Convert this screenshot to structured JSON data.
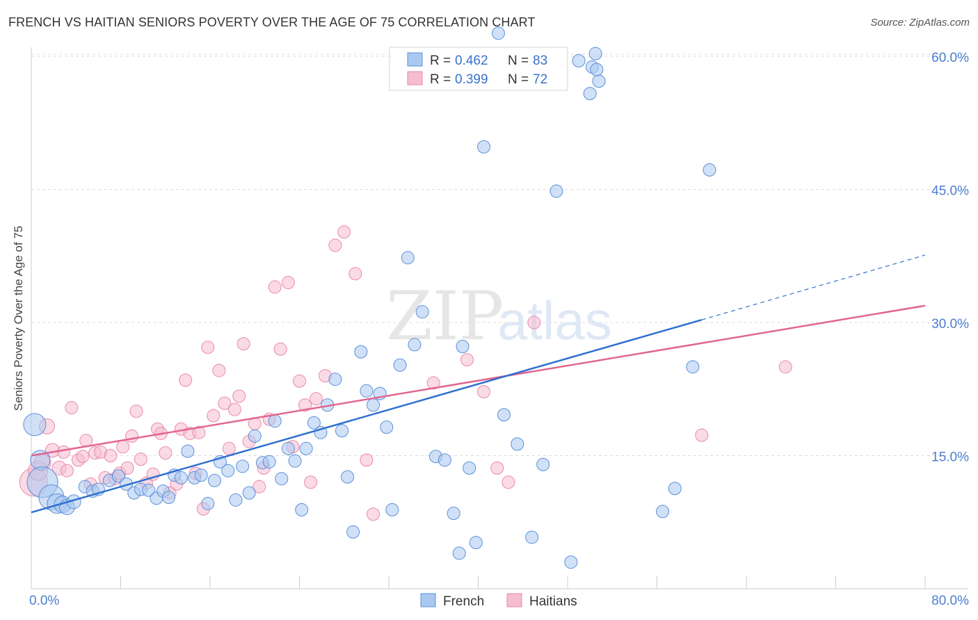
{
  "title": "FRENCH VS HAITIAN SENIORS POVERTY OVER THE AGE OF 75 CORRELATION CHART",
  "source": "Source: ZipAtlas.com",
  "colors": {
    "french_fill": "#a9c8f0",
    "french_stroke": "#5b8fd8",
    "french_line": "#2f6fce",
    "haitians_fill": "#f6bccf",
    "haitians_stroke": "#e98aab",
    "haitians_line": "#e0668f",
    "grid": "#dddddd",
    "axis_label": "#4a7fd0"
  },
  "watermark": {
    "zip": "ZIP",
    "atlas": "atlas"
  },
  "legend": {
    "rows": [
      {
        "r_label": "R =",
        "r_value": "0.462",
        "n_label": "N =",
        "n_value": "83"
      },
      {
        "r_label": "R =",
        "r_value": "0.399",
        "n_label": "N =",
        "n_value": "72"
      }
    ]
  },
  "bottom_legend": [
    "French",
    "Haitians"
  ],
  "chart_data": {
    "type": "scatter",
    "title": "FRENCH VS HAITIAN SENIORS POVERTY OVER THE AGE OF 75 CORRELATION CHART",
    "xlabel": "",
    "ylabel": "Seniors Poverty Over the Age of 75",
    "xlim": [
      0,
      80
    ],
    "ylim": [
      0,
      60
    ],
    "x_tick_labels": [
      "0.0%",
      "80.0%"
    ],
    "y_ticks": [
      15,
      30,
      45,
      60
    ],
    "y_tick_labels": [
      "15.0%",
      "30.0%",
      "45.0%",
      "60.0%"
    ],
    "grid": true,
    "legend_position": "top-center",
    "series": [
      {
        "name": "French",
        "R": 0.462,
        "N": 83,
        "trend": {
          "x0": 0,
          "y0": 8.6,
          "x1": 60,
          "y1": 30.3,
          "dashed_to": {
            "x": 80,
            "y": 37.6
          }
        },
        "points": [
          [
            0.3,
            18.5,
            16
          ],
          [
            0.8,
            14.5,
            14
          ],
          [
            1.0,
            12.0,
            22
          ],
          [
            1.8,
            10.3,
            18
          ],
          [
            2.3,
            9.6,
            14
          ],
          [
            2.8,
            9.5,
            12
          ],
          [
            3.2,
            9.2,
            11
          ],
          [
            3.8,
            9.8,
            10
          ],
          [
            4.8,
            11.5,
            9
          ],
          [
            5.5,
            11.0,
            9
          ],
          [
            6.0,
            11.2,
            9
          ],
          [
            7.0,
            12.2,
            9
          ],
          [
            7.8,
            12.7,
            9
          ],
          [
            8.5,
            11.8,
            9
          ],
          [
            9.2,
            10.8,
            9
          ],
          [
            9.8,
            11.2,
            9
          ],
          [
            10.5,
            11.1,
            9
          ],
          [
            11.2,
            10.2,
            9
          ],
          [
            11.8,
            11.0,
            9
          ],
          [
            12.3,
            10.3,
            9
          ],
          [
            12.8,
            12.8,
            9
          ],
          [
            13.4,
            12.5,
            9
          ],
          [
            14.0,
            15.5,
            9
          ],
          [
            14.6,
            12.5,
            9
          ],
          [
            15.2,
            12.8,
            9
          ],
          [
            15.8,
            9.6,
            9
          ],
          [
            16.4,
            12.2,
            9
          ],
          [
            16.9,
            14.3,
            9
          ],
          [
            17.6,
            13.3,
            9
          ],
          [
            18.3,
            10.0,
            9
          ],
          [
            18.9,
            13.8,
            9
          ],
          [
            19.5,
            10.8,
            9
          ],
          [
            20.0,
            17.2,
            9
          ],
          [
            20.7,
            14.2,
            9
          ],
          [
            21.3,
            14.3,
            9
          ],
          [
            21.8,
            18.9,
            9
          ],
          [
            22.4,
            12.4,
            9
          ],
          [
            23.0,
            15.8,
            9
          ],
          [
            23.6,
            14.4,
            9
          ],
          [
            24.2,
            8.9,
            9
          ],
          [
            24.6,
            15.8,
            9
          ],
          [
            25.3,
            18.7,
            9
          ],
          [
            25.9,
            17.6,
            9
          ],
          [
            26.5,
            20.7,
            9
          ],
          [
            27.2,
            23.6,
            9
          ],
          [
            27.8,
            17.8,
            9
          ],
          [
            28.3,
            12.6,
            9
          ],
          [
            28.8,
            6.4,
            9
          ],
          [
            29.5,
            26.7,
            9
          ],
          [
            30.0,
            22.3,
            9
          ],
          [
            30.6,
            20.7,
            9
          ],
          [
            31.2,
            22.0,
            9
          ],
          [
            31.8,
            18.2,
            9
          ],
          [
            32.3,
            8.9,
            9
          ],
          [
            33.0,
            25.2,
            9
          ],
          [
            33.7,
            37.3,
            9
          ],
          [
            34.3,
            27.5,
            9
          ],
          [
            35.0,
            31.2,
            9
          ],
          [
            36.2,
            14.9,
            9
          ],
          [
            37.0,
            14.5,
            9
          ],
          [
            37.8,
            8.5,
            9
          ],
          [
            38.3,
            4.0,
            9
          ],
          [
            38.6,
            27.3,
            9
          ],
          [
            39.2,
            13.6,
            9
          ],
          [
            39.8,
            5.2,
            9
          ],
          [
            40.5,
            49.8,
            9
          ],
          [
            41.8,
            62.6,
            9
          ],
          [
            42.3,
            19.6,
            9
          ],
          [
            43.5,
            16.3,
            9
          ],
          [
            44.8,
            5.8,
            9
          ],
          [
            45.8,
            14.0,
            9
          ],
          [
            47.0,
            44.8,
            9
          ],
          [
            48.3,
            3.0,
            9
          ],
          [
            50.0,
            55.8,
            9
          ],
          [
            50.8,
            57.2,
            9
          ],
          [
            50.2,
            58.8,
            9
          ],
          [
            50.5,
            60.3,
            9
          ],
          [
            50.6,
            58.5,
            9
          ],
          [
            56.5,
            8.7,
            9
          ],
          [
            57.6,
            11.3,
            9
          ],
          [
            59.2,
            25.0,
            9
          ],
          [
            60.7,
            47.2,
            9
          ],
          [
            49.0,
            59.5,
            9
          ]
        ]
      },
      {
        "name": "Haitians",
        "R": 0.399,
        "N": 72,
        "trend": {
          "x0": 0,
          "y0": 15.0,
          "x1": 80,
          "y1": 31.9
        },
        "points": [
          [
            0.2,
            12.0,
            20
          ],
          [
            0.6,
            13.3,
            14
          ],
          [
            1.0,
            14.2,
            12
          ],
          [
            1.4,
            18.3,
            11
          ],
          [
            1.9,
            15.6,
            10
          ],
          [
            2.5,
            13.6,
            10
          ],
          [
            2.9,
            15.4,
            9
          ],
          [
            3.2,
            13.3,
            9
          ],
          [
            3.6,
            20.4,
            9
          ],
          [
            4.2,
            14.5,
            9
          ],
          [
            4.6,
            14.9,
            9
          ],
          [
            4.9,
            16.7,
            9
          ],
          [
            5.3,
            11.8,
            9
          ],
          [
            5.7,
            15.3,
            9
          ],
          [
            6.2,
            15.4,
            9
          ],
          [
            6.6,
            12.5,
            9
          ],
          [
            7.1,
            15.0,
            9
          ],
          [
            7.5,
            12.4,
            9
          ],
          [
            7.9,
            13.0,
            9
          ],
          [
            8.2,
            16.0,
            9
          ],
          [
            8.6,
            13.6,
            9
          ],
          [
            9.0,
            17.2,
            9
          ],
          [
            9.4,
            20.0,
            9
          ],
          [
            9.8,
            14.6,
            9
          ],
          [
            10.3,
            11.9,
            9
          ],
          [
            10.9,
            12.9,
            9
          ],
          [
            11.3,
            18.0,
            9
          ],
          [
            11.6,
            17.5,
            9
          ],
          [
            12.0,
            15.3,
            9
          ],
          [
            12.4,
            10.8,
            9
          ],
          [
            13.0,
            11.8,
            9
          ],
          [
            13.4,
            18.0,
            9
          ],
          [
            13.8,
            23.5,
            9
          ],
          [
            14.2,
            17.5,
            9
          ],
          [
            14.7,
            13.0,
            9
          ],
          [
            15.0,
            17.6,
            9
          ],
          [
            15.4,
            9.0,
            9
          ],
          [
            15.8,
            27.2,
            9
          ],
          [
            16.3,
            19.5,
            9
          ],
          [
            16.8,
            24.6,
            9
          ],
          [
            17.3,
            20.9,
            9
          ],
          [
            17.7,
            15.8,
            9
          ],
          [
            18.2,
            20.2,
            9
          ],
          [
            18.6,
            21.7,
            9
          ],
          [
            19.0,
            27.6,
            9
          ],
          [
            19.5,
            16.6,
            9
          ],
          [
            20.0,
            18.6,
            9
          ],
          [
            20.4,
            11.5,
            9
          ],
          [
            20.8,
            13.6,
            9
          ],
          [
            21.3,
            19.1,
            9
          ],
          [
            21.8,
            34.0,
            9
          ],
          [
            22.3,
            27.0,
            9
          ],
          [
            23.0,
            34.5,
            9
          ],
          [
            23.4,
            16.0,
            9
          ],
          [
            24.0,
            23.4,
            9
          ],
          [
            24.5,
            20.7,
            9
          ],
          [
            25.0,
            12.0,
            9
          ],
          [
            25.5,
            21.4,
            9
          ],
          [
            26.3,
            24.0,
            9
          ],
          [
            27.2,
            38.7,
            9
          ],
          [
            28.0,
            40.2,
            9
          ],
          [
            29.0,
            35.5,
            9
          ],
          [
            30.0,
            14.5,
            9
          ],
          [
            30.6,
            8.4,
            9
          ],
          [
            36.0,
            23.2,
            9
          ],
          [
            39.0,
            25.8,
            9
          ],
          [
            40.5,
            22.2,
            9
          ],
          [
            41.7,
            13.6,
            9
          ],
          [
            42.7,
            12.0,
            9
          ],
          [
            45.0,
            30.0,
            9
          ],
          [
            60.0,
            17.3,
            9
          ],
          [
            67.5,
            25.0,
            9
          ]
        ]
      }
    ]
  },
  "y_axis_title": "Seniors Poverty Over the Age of 75"
}
